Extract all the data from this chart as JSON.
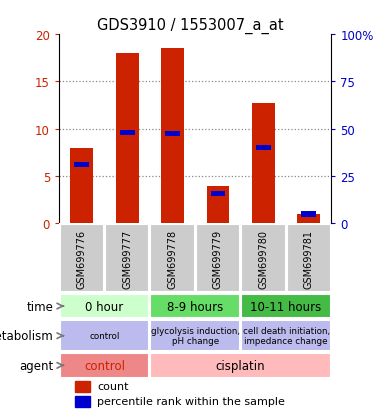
{
  "title": "GDS3910 / 1553007_a_at",
  "samples": [
    "GSM699776",
    "GSM699777",
    "GSM699778",
    "GSM699779",
    "GSM699780",
    "GSM699781"
  ],
  "counts": [
    8,
    18,
    18.5,
    4,
    12.7,
    1
  ],
  "percentile_ranks": [
    31,
    48,
    47.5,
    16,
    40,
    5
  ],
  "ylim_left": [
    0,
    20
  ],
  "ylim_right": [
    0,
    100
  ],
  "yticks_left": [
    0,
    5,
    10,
    15,
    20
  ],
  "yticks_right": [
    0,
    25,
    50,
    75,
    100
  ],
  "bar_color": "#cc2200",
  "percentile_color": "#0000cc",
  "bar_width": 0.5,
  "sample_bg_color": "#cccccc",
  "time_groups": [
    {
      "label": "0 hour",
      "cols": [
        0,
        1
      ],
      "color": "#ccffcc"
    },
    {
      "label": "8-9 hours",
      "cols": [
        2,
        3
      ],
      "color": "#66dd66"
    },
    {
      "label": "10-11 hours",
      "cols": [
        4,
        5
      ],
      "color": "#44bb44"
    }
  ],
  "metabolism_groups": [
    {
      "label": "control",
      "cols": [
        0,
        1
      ],
      "color": "#bbbbee"
    },
    {
      "label": "glycolysis induction,\npH change",
      "cols": [
        2,
        3
      ],
      "color": "#bbbbee"
    },
    {
      "label": "cell death initiation,\nimpedance change",
      "cols": [
        4,
        5
      ],
      "color": "#bbbbee"
    }
  ],
  "agent_groups": [
    {
      "label": "control",
      "cols": [
        0,
        1
      ],
      "color": "#ee8888"
    },
    {
      "label": "cisplatin",
      "cols": [
        2,
        5
      ],
      "color": "#ffbbbb"
    }
  ],
  "row_labels": [
    "time",
    "metabolism",
    "agent"
  ],
  "arrow_color": "#888888",
  "legend_count_color": "#cc2200",
  "legend_percentile_color": "#0000cc"
}
